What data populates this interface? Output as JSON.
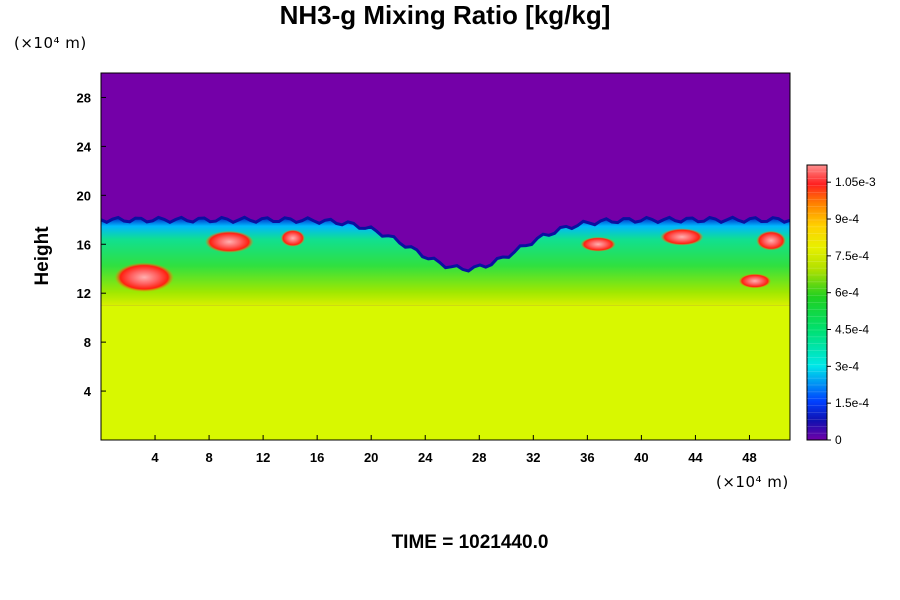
{
  "chart_data": {
    "type": "heatmap",
    "title": "NH3-g Mixing Ratio [kg/kg]",
    "xlabel": "",
    "ylabel": "Height",
    "x_unit": "(×10⁴ m)",
    "y_unit": "(×10⁴ m)",
    "xlim": [
      0,
      51
    ],
    "ylim": [
      0,
      30
    ],
    "x_ticks": [
      "4",
      "8",
      "12",
      "16",
      "20",
      "24",
      "28",
      "32",
      "36",
      "40",
      "44",
      "48"
    ],
    "y_ticks": [
      "4",
      "8",
      "12",
      "16",
      "20",
      "24",
      "28"
    ],
    "x_tick_values": [
      4,
      8,
      12,
      16,
      20,
      24,
      28,
      32,
      36,
      40,
      44,
      48
    ],
    "y_tick_values": [
      4,
      8,
      12,
      16,
      20,
      24,
      28
    ],
    "colorbar": {
      "min": 0,
      "max": 0.00112,
      "labels": [
        "1.05e-3",
        "9e-4",
        "7.5e-4",
        "6e-4",
        "4.5e-4",
        "3e-4",
        "1.5e-4",
        "0"
      ],
      "label_values": [
        0.00105,
        0.0009,
        0.00075,
        0.0006,
        0.00045,
        0.0003,
        0.00015,
        0
      ]
    },
    "regions": {
      "lower_layer_value": 0.00075,
      "upper_layer_value": 0,
      "lower_layer_top_height": 11,
      "cloud_top_height_range": [
        15,
        18
      ]
    },
    "grid": false
  },
  "footer": {
    "time_label": "TIME = 1021440.0"
  }
}
